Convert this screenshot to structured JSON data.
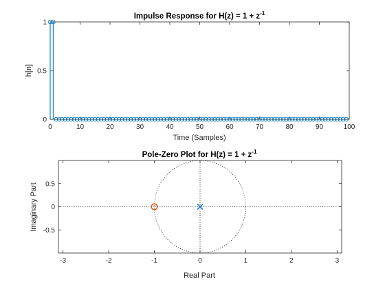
{
  "window": {
    "width_label": "",
    "height_label": ""
  },
  "charts": {
    "impulse": {
      "title_main": "Impulse Response for H(z) = 1 + z",
      "title_sup": "-1",
      "xlabel": "Time (Samples)",
      "ylabel": "h[n]",
      "xticks": [
        "0",
        "10",
        "20",
        "30",
        "40",
        "50",
        "60",
        "70",
        "80",
        "90",
        "100"
      ],
      "yticks": [
        "0",
        "0.5",
        "1"
      ]
    },
    "polezero": {
      "title_main": "Pole-Zero Plot for H(z) = 1 + z",
      "title_sup": "-1",
      "xlabel": "Real Part",
      "ylabel": "Imaginary Part",
      "xticks": [
        "-3",
        "-2",
        "-1",
        "0",
        "1",
        "2",
        "3"
      ],
      "yticks": [
        "-0.5",
        "0",
        "0.5"
      ]
    }
  },
  "chart_data": [
    {
      "type": "stem",
      "title": "Impulse Response for H(z) = 1 + z^-1",
      "xlabel": "Time (Samples)",
      "ylabel": "h[n]",
      "xlim": [
        0,
        100
      ],
      "ylim": [
        0,
        1
      ],
      "series": [
        {
          "color": "#0072BD",
          "x": [
            0,
            1,
            2,
            3,
            4,
            5,
            6,
            7,
            8,
            9,
            10,
            11,
            12,
            13,
            14,
            15,
            16,
            17,
            18,
            19,
            20,
            21,
            22,
            23,
            24,
            25,
            26,
            27,
            28,
            29,
            30,
            31,
            32,
            33,
            34,
            35,
            36,
            37,
            38,
            39,
            40,
            41,
            42,
            43,
            44,
            45,
            46,
            47,
            48,
            49,
            50,
            51,
            52,
            53,
            54,
            55,
            56,
            57,
            58,
            59,
            60,
            61,
            62,
            63,
            64,
            65,
            66,
            67,
            68,
            69,
            70,
            71,
            72,
            73,
            74,
            75,
            76,
            77,
            78,
            79,
            80,
            81,
            82,
            83,
            84,
            85,
            86,
            87,
            88,
            89,
            90,
            91,
            92,
            93,
            94,
            95,
            96,
            97,
            98,
            99
          ],
          "values": [
            1,
            1,
            0,
            0,
            0,
            0,
            0,
            0,
            0,
            0,
            0,
            0,
            0,
            0,
            0,
            0,
            0,
            0,
            0,
            0,
            0,
            0,
            0,
            0,
            0,
            0,
            0,
            0,
            0,
            0,
            0,
            0,
            0,
            0,
            0,
            0,
            0,
            0,
            0,
            0,
            0,
            0,
            0,
            0,
            0,
            0,
            0,
            0,
            0,
            0,
            0,
            0,
            0,
            0,
            0,
            0,
            0,
            0,
            0,
            0,
            0,
            0,
            0,
            0,
            0,
            0,
            0,
            0,
            0,
            0,
            0,
            0,
            0,
            0,
            0,
            0,
            0,
            0,
            0,
            0,
            0,
            0,
            0,
            0,
            0,
            0,
            0,
            0,
            0,
            0,
            0,
            0,
            0,
            0,
            0,
            0,
            0,
            0,
            0,
            0
          ]
        }
      ]
    },
    {
      "type": "scatter",
      "title": "Pole-Zero Plot for H(z) = 1 + z^-1",
      "xlabel": "Real Part",
      "ylabel": "Imaginary Part",
      "xlim": [
        -3.1,
        3.1
      ],
      "ylim": [
        -1,
        1
      ],
      "grid": false,
      "unit_circle": true,
      "zeros": [
        {
          "re": -1,
          "im": 0,
          "color": "#D95319"
        }
      ],
      "poles": [
        {
          "re": 0,
          "im": 0,
          "color": "#0072BD"
        }
      ]
    }
  ]
}
